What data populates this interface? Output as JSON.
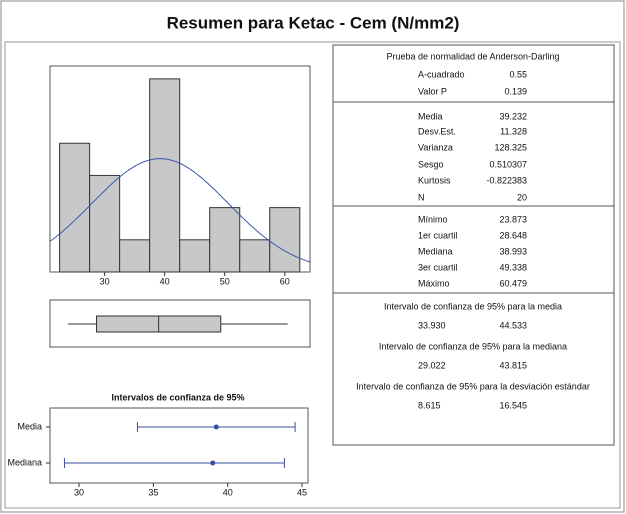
{
  "title": "Resumen para Ketac - Cem (N/mm2)",
  "chart_data": [
    {
      "type": "histogram",
      "bins": [
        22.5,
        27.5,
        32.5,
        37.5,
        42.5,
        47.5,
        52.5,
        57.5,
        62.5
      ],
      "values": [
        4,
        3,
        1,
        6,
        1,
        2,
        1,
        2
      ],
      "color": "#c8c8c8",
      "xlim": [
        20.9,
        64.2
      ],
      "ylim": [
        0,
        6.4
      ],
      "xticks": [
        30,
        40,
        50,
        60
      ],
      "normal_fit": {
        "mean": 39.232,
        "sd": 11.328,
        "color": "#3a56b0"
      }
    },
    {
      "type": "box",
      "min": 23.873,
      "q1": 28.648,
      "median": 38.993,
      "q3": 49.338,
      "max": 60.479,
      "color": "#c8c8c8",
      "xlim": [
        20.9,
        64.2
      ]
    },
    {
      "type": "interval",
      "title": "Intervalos de confianza de 95%",
      "categories": [
        "Media",
        "Mediana"
      ],
      "values": [
        39.232,
        38.993
      ],
      "lower": [
        33.93,
        29.022
      ],
      "upper": [
        44.533,
        43.815
      ],
      "color": "#3a4fa0",
      "xlim": [
        28.05,
        45.4
      ],
      "xticks": [
        30,
        35,
        40,
        45
      ]
    }
  ],
  "summary": {
    "normality": {
      "title": "Prueba de normalidad de Anderson-Darling",
      "rows": [
        [
          "A-cuadrado",
          "0.55"
        ],
        [
          "Valor P",
          "0.139"
        ]
      ]
    },
    "moments": {
      "rows": [
        [
          "Media",
          "39.232"
        ],
        [
          "Desv.Est.",
          "11.328"
        ],
        [
          "Varianza",
          "128.325"
        ],
        [
          "Sesgo",
          "0.510307"
        ],
        [
          "Kurtosis",
          "-0.822383"
        ],
        [
          "N",
          "20"
        ]
      ]
    },
    "quartiles": {
      "rows": [
        [
          "Mínimo",
          "23.873"
        ],
        [
          "1er cuartil",
          "28.648"
        ],
        [
          "Mediana",
          "38.993"
        ],
        [
          "3er cuartil",
          "49.338"
        ],
        [
          "Máximo",
          "60.479"
        ]
      ]
    },
    "intervals": [
      {
        "label": "Intervalo de confianza de 95% para la media",
        "low": "33.930",
        "high": "44.533"
      },
      {
        "label": "Intervalo de confianza de 95% para la mediana",
        "low": "29.022",
        "high": "43.815"
      },
      {
        "label": "Intervalo de confianza de 95% para la desviación estándar",
        "low": "8.615",
        "high": "16.545"
      }
    ]
  }
}
